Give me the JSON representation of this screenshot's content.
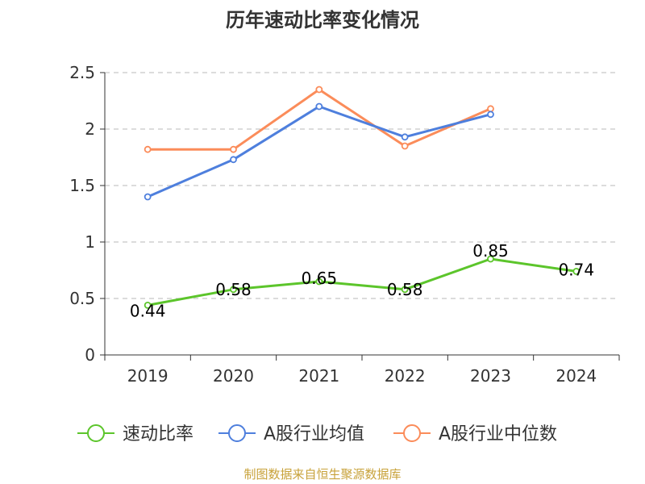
{
  "chart_data": {
    "type": "line",
    "title": "历年速动比率变化情况",
    "categories": [
      "2019",
      "2020",
      "2021",
      "2022",
      "2023",
      "2024"
    ],
    "ylim": [
      0,
      2.5
    ],
    "yticks": [
      "0",
      "0.5",
      "1",
      "1.5",
      "2",
      "2.5"
    ],
    "grid": true,
    "legend_position": "bottom",
    "series": [
      {
        "name": "速动比率",
        "color": "#5cc52b",
        "values": [
          0.44,
          0.58,
          0.65,
          0.58,
          0.85,
          0.74
        ],
        "labels": [
          "0.44",
          "0.58",
          "0.65",
          "0.58",
          "0.85",
          "0.74"
        ]
      },
      {
        "name": "A股行业均值",
        "color": "#4e7fdd",
        "values": [
          1.4,
          1.73,
          2.2,
          1.93,
          2.13,
          null
        ]
      },
      {
        "name": "A股行业中位数",
        "color": "#fb8c5a",
        "values": [
          1.82,
          1.82,
          2.35,
          1.85,
          2.18,
          null
        ]
      }
    ]
  },
  "footer": {
    "source": "制图数据来自恒生聚源数据库"
  }
}
